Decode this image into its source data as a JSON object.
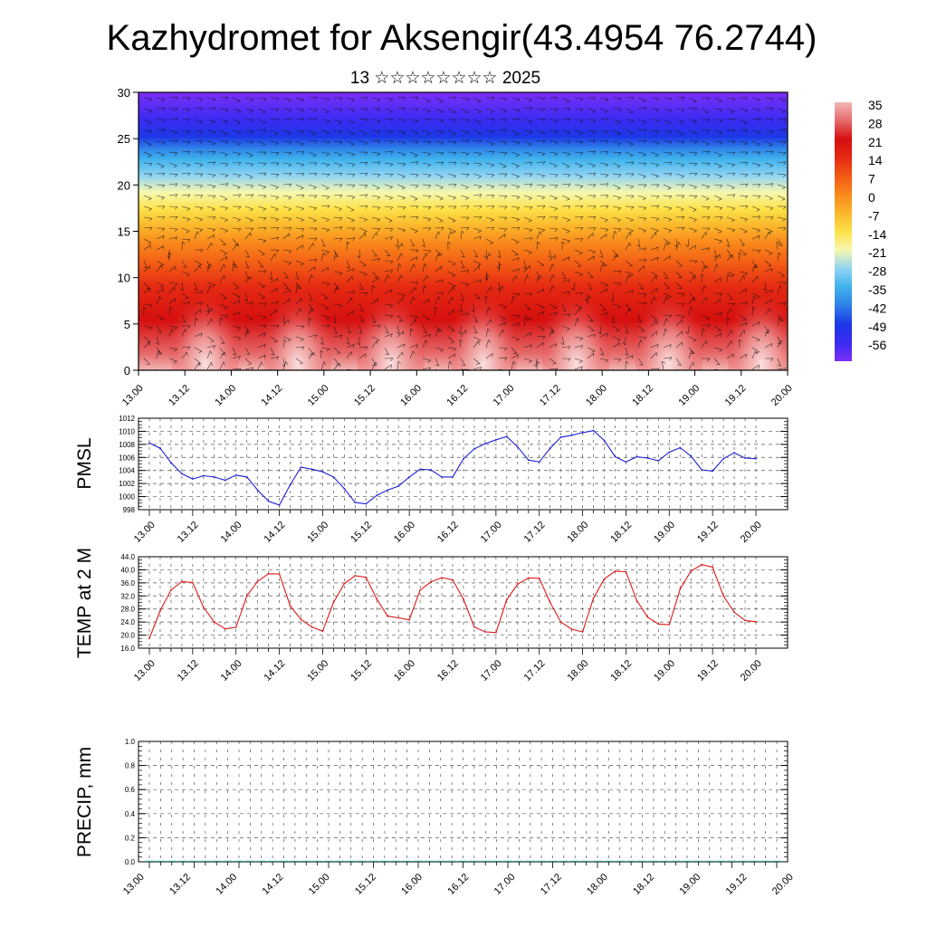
{
  "header": {
    "title": "Kazhydromet for Aksengir(43.4954 76.2744)",
    "subtitle": "13 ☆☆☆☆☆☆☆☆ 2025"
  },
  "time_ticks": [
    "13.00",
    "13.12",
    "14.00",
    "14.12",
    "15.00",
    "15.12",
    "16.00",
    "16.12",
    "17.00",
    "17.12",
    "18.00",
    "18.12",
    "19.00",
    "19.12",
    "20.00"
  ],
  "chart_data": [
    {
      "id": "cross-section",
      "type": "heatmap",
      "title": "",
      "xlabel": "",
      "ylabel": "",
      "x": [
        "13.00",
        "13.12",
        "14.00",
        "14.12",
        "15.00",
        "15.12",
        "16.00",
        "16.12",
        "17.00",
        "17.12",
        "18.00",
        "18.12",
        "19.00",
        "19.12",
        "20.00"
      ],
      "ylim": [
        0,
        30
      ],
      "yticks": [
        "0",
        "5",
        "10",
        "15",
        "20",
        "25",
        "30"
      ],
      "colorbar": {
        "labels": [
          "35",
          "28",
          "21",
          "14",
          "7",
          "0",
          "-7",
          "-14",
          "-21",
          "-28",
          "-35",
          "-42",
          "-49",
          "-56"
        ],
        "range": [
          -60,
          38
        ],
        "colors": [
          "#7b2ff7",
          "#3b2bf2",
          "#1c38e6",
          "#2f7fe9",
          "#3fb2ec",
          "#8fd3f3",
          "#f7f7b0",
          "#fde24a",
          "#fbb72c",
          "#f98a1c",
          "#f25a15",
          "#e52a12",
          "#d60f0f",
          "#e66a6a",
          "#f3b6b6"
        ]
      }
    },
    {
      "id": "pmsl",
      "type": "line",
      "ylabel": "PMSL",
      "ylim": [
        998,
        1012
      ],
      "yticks": [
        "998",
        "1000",
        "1002",
        "1004",
        "1006",
        "1008",
        "1010",
        "1012"
      ],
      "x_index_range": [
        0,
        14
      ],
      "color": "#1f1fd6",
      "values": [
        1008.2,
        1007.4,
        1005.2,
        1003.5,
        1002.7,
        1003.2,
        1003.0,
        1002.5,
        1003.3,
        1003.0,
        1001.0,
        999.3,
        998.7,
        1001.8,
        1004.5,
        1004.2,
        1003.8,
        1003.0,
        1001.2,
        999.1,
        998.9,
        1000.2,
        1001.0,
        1001.6,
        1003.0,
        1004.2,
        1004.1,
        1003.0,
        1003.0,
        1005.8,
        1007.3,
        1008.1,
        1008.7,
        1009.2,
        1007.6,
        1005.6,
        1005.3,
        1007.4,
        1009.1,
        1009.4,
        1009.8,
        1010.1,
        1008.6,
        1006.1,
        1005.3,
        1006.1,
        1005.9,
        1005.5,
        1006.8,
        1007.5,
        1006.2,
        1004.1,
        1003.9,
        1005.8,
        1006.7,
        1005.9,
        1005.8
      ]
    },
    {
      "id": "temp2m",
      "type": "line",
      "ylabel": "TEMP at 2 M",
      "ylim": [
        16,
        44
      ],
      "yticks": [
        "16.0",
        "20.0",
        "24.0",
        "28.0",
        "32.0",
        "36.0",
        "40.0",
        "44.0"
      ],
      "x_index_range": [
        0,
        14
      ],
      "color": "#e01818",
      "values": [
        19.0,
        27.5,
        33.8,
        36.4,
        36.1,
        28.5,
        24.0,
        21.9,
        22.4,
        32.0,
        36.5,
        38.8,
        38.7,
        29.0,
        24.8,
        22.5,
        21.2,
        30.0,
        35.8,
        38.2,
        37.7,
        31.0,
        25.8,
        25.3,
        24.7,
        33.8,
        36.3,
        37.6,
        36.9,
        31.0,
        22.5,
        21.0,
        20.8,
        30.9,
        35.6,
        37.5,
        37.4,
        30.0,
        24.0,
        21.8,
        21.0,
        31.3,
        37.2,
        39.6,
        39.4,
        30.6,
        25.5,
        23.4,
        23.2,
        34.1,
        39.6,
        41.6,
        40.8,
        32.0,
        27.0,
        24.5,
        24.1
      ]
    },
    {
      "id": "precip",
      "type": "bar",
      "ylabel": "PRECIP, mm",
      "ylim": [
        0,
        1.0
      ],
      "yticks": [
        "0.0",
        "0.2",
        "0.4",
        "0.6",
        "0.8",
        "1.0"
      ],
      "color": "#2a9a9a",
      "values": [
        0,
        0,
        0,
        0,
        0,
        0,
        0,
        0,
        0,
        0,
        0,
        0,
        0,
        0,
        0,
        0,
        0,
        0,
        0,
        0,
        0,
        0,
        0,
        0,
        0,
        0,
        0,
        0,
        0,
        0,
        0,
        0,
        0,
        0,
        0,
        0,
        0,
        0,
        0,
        0,
        0,
        0,
        0,
        0,
        0,
        0,
        0,
        0,
        0,
        0,
        0,
        0,
        0,
        0,
        0,
        0,
        0
      ]
    }
  ]
}
